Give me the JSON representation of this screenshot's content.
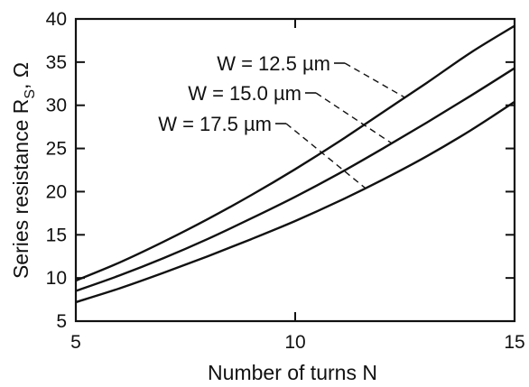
{
  "chart_data": {
    "type": "line",
    "title": "",
    "xlabel": "Number of turns N",
    "ylabel_main": "Series resistance R",
    "ylabel_sub": "S",
    "ylabel_tail": ", Ω",
    "xlim": [
      5,
      15
    ],
    "ylim": [
      5,
      40
    ],
    "xticks": [
      5,
      10,
      15
    ],
    "yticks": [
      5,
      10,
      15,
      20,
      25,
      30,
      35,
      40
    ],
    "grid": false,
    "legend": "inline labels with dashed leader lines",
    "line_color": "#111111",
    "series": [
      {
        "name": "W = 12.5 µm",
        "x": [
          5,
          6,
          7,
          8,
          9,
          10,
          11,
          12,
          13,
          14,
          15
        ],
        "y": [
          9.7,
          11.8,
          14.2,
          16.8,
          19.6,
          22.6,
          25.8,
          29.2,
          32.6,
          36.1,
          39.2
        ],
        "label_anchor_x": 12.5
      },
      {
        "name": "W = 15.0 µm",
        "x": [
          5,
          6,
          7,
          8,
          9,
          10,
          11,
          12,
          13,
          14,
          15
        ],
        "y": [
          8.5,
          10.3,
          12.3,
          14.5,
          16.9,
          19.4,
          22.1,
          25.0,
          28.0,
          31.1,
          34.3
        ],
        "label_anchor_x": 12.2
      },
      {
        "name": "W = 17.5 µm",
        "x": [
          5,
          6,
          7,
          8,
          9,
          10,
          11,
          12,
          13,
          14,
          15
        ],
        "y": [
          7.2,
          8.8,
          10.6,
          12.5,
          14.5,
          16.6,
          18.9,
          21.4,
          24.1,
          27.1,
          30.4
        ],
        "label_anchor_x": 11.6
      }
    ]
  }
}
